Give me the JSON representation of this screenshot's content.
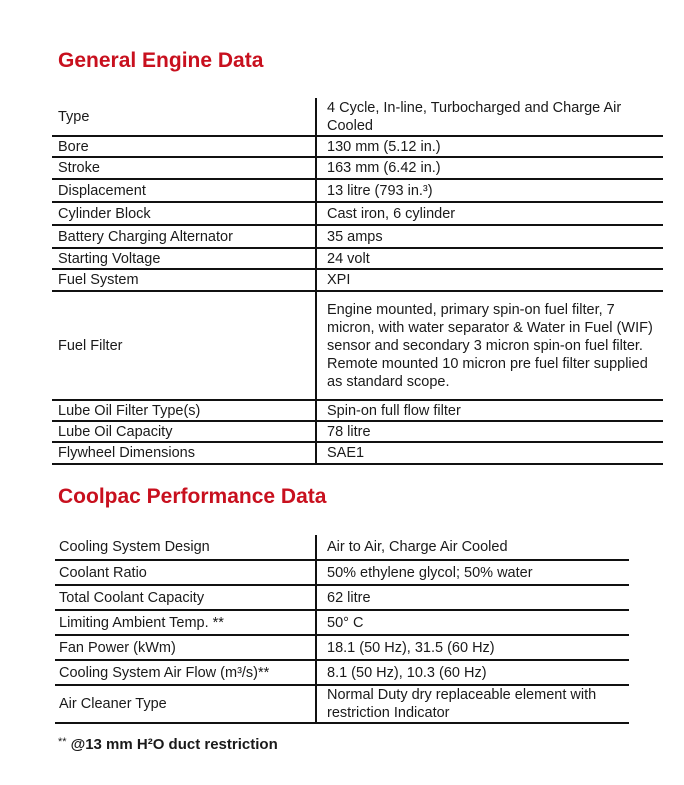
{
  "general": {
    "title": "General Engine Data",
    "rows": [
      {
        "label": "Type",
        "value": "4 Cycle, In-line, Turbocharged and Charge Air Cooled"
      },
      {
        "label": "Bore",
        "value": "130 mm (5.12 in.)"
      },
      {
        "label": "Stroke",
        "value": "163 mm (6.42 in.)"
      },
      {
        "label": "Displacement",
        "value": "13 litre (793 in.³)"
      },
      {
        "label": "Cylinder Block",
        "value": "Cast iron, 6 cylinder"
      },
      {
        "label": "Battery Charging Alternator",
        "value": "35 amps"
      },
      {
        "label": "Starting Voltage",
        "value": "24 volt"
      },
      {
        "label": "Fuel System",
        "value": "XPI"
      },
      {
        "label": "Fuel Filter",
        "value": "Engine mounted, primary spin-on fuel filter, 7 micron, with water separator & Water in Fuel (WIF) sensor and secondary 3 micron spin-on fuel filter.",
        "value2": "Remote mounted 10 micron pre fuel filter supplied as standard scope."
      },
      {
        "label": "Lube Oil Filter Type(s)",
        "value": "Spin-on full flow filter"
      },
      {
        "label": "Lube Oil Capacity",
        "value": "78 litre"
      },
      {
        "label": "Flywheel Dimensions",
        "value": "SAE1"
      }
    ]
  },
  "coolpac": {
    "title": "Coolpac Performance Data",
    "rows": [
      {
        "label": "Cooling System Design",
        "value": "Air to Air, Charge Air Cooled"
      },
      {
        "label": "Coolant Ratio",
        "value": "50% ethylene glycol; 50% water"
      },
      {
        "label": "Total Coolant Capacity",
        "value": "62 litre"
      },
      {
        "label": "Limiting Ambient Temp. **",
        "value": "50° C"
      },
      {
        "label": "Fan Power (kWm)",
        "value": "18.1 (50 Hz), 31.5 (60 Hz)"
      },
      {
        "label": "Cooling System Air Flow (m³/s)**",
        "value": "8.1 (50 Hz), 10.3 (60 Hz)"
      },
      {
        "label": "Air Cleaner Type",
        "value": "Normal Duty dry replaceable element with restriction Indicator"
      }
    ],
    "footnote_marker": "**",
    "footnote": "@13 mm H²O duct restriction"
  },
  "colors": {
    "heading": "#c8101e",
    "rules": "#111111"
  }
}
